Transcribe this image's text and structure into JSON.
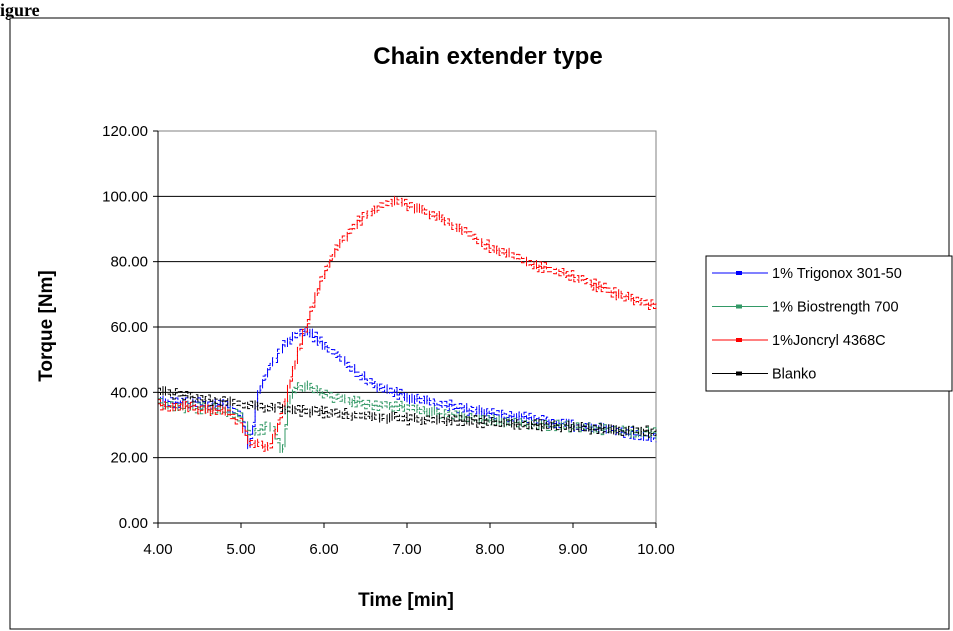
{
  "page": {
    "top_fragment": "igure"
  },
  "chart_data": {
    "type": "line",
    "title": "Chain extender type",
    "xlabel": "Time [min]",
    "ylabel": "Torque [Nm]",
    "xlim": [
      4.0,
      10.0
    ],
    "ylim": [
      0.0,
      120.0
    ],
    "x_ticks": [
      "4.00",
      "5.00",
      "6.00",
      "7.00",
      "8.00",
      "9.00",
      "10.00"
    ],
    "y_ticks": [
      "0.00",
      "20.00",
      "40.00",
      "60.00",
      "80.00",
      "100.00",
      "120.00"
    ],
    "grid": "horizontal",
    "legend_position": "right",
    "series": [
      {
        "name": "1% Trigonox 301-50",
        "color": "#0000ff",
        "points": [
          [
            4.0,
            38
          ],
          [
            4.4,
            37.5
          ],
          [
            4.8,
            36.5
          ],
          [
            5.0,
            34
          ],
          [
            5.05,
            27
          ],
          [
            5.1,
            24
          ],
          [
            5.13,
            30
          ],
          [
            5.2,
            41
          ],
          [
            5.3,
            47
          ],
          [
            5.4,
            51
          ],
          [
            5.5,
            55
          ],
          [
            5.6,
            57
          ],
          [
            5.7,
            59
          ],
          [
            5.75,
            60
          ],
          [
            5.8,
            59
          ],
          [
            5.9,
            57
          ],
          [
            6.0,
            55
          ],
          [
            6.2,
            51
          ],
          [
            6.4,
            46
          ],
          [
            6.6,
            43
          ],
          [
            6.8,
            41
          ],
          [
            7.0,
            39
          ],
          [
            7.5,
            36.5
          ],
          [
            8.0,
            34
          ],
          [
            8.5,
            32.5
          ],
          [
            9.0,
            30.5
          ],
          [
            9.5,
            29
          ],
          [
            10.0,
            27
          ]
        ]
      },
      {
        "name": "1% Biostrength 700",
        "color": "#339966",
        "points": [
          [
            4.0,
            37
          ],
          [
            4.4,
            36
          ],
          [
            4.8,
            35
          ],
          [
            5.0,
            33
          ],
          [
            5.05,
            30
          ],
          [
            5.1,
            28
          ],
          [
            5.2,
            29
          ],
          [
            5.3,
            30
          ],
          [
            5.4,
            29
          ],
          [
            5.45,
            24
          ],
          [
            5.5,
            23
          ],
          [
            5.55,
            36
          ],
          [
            5.6,
            41
          ],
          [
            5.7,
            43
          ],
          [
            5.8,
            42
          ],
          [
            6.0,
            40
          ],
          [
            6.3,
            38
          ],
          [
            6.6,
            37
          ],
          [
            7.0,
            36
          ],
          [
            7.5,
            34
          ],
          [
            8.0,
            32
          ],
          [
            8.5,
            31
          ],
          [
            9.0,
            30
          ],
          [
            9.5,
            29
          ],
          [
            10.0,
            28
          ]
        ]
      },
      {
        "name": "1%Joncryl 4368C",
        "color": "#ff0000",
        "points": [
          [
            4.0,
            37
          ],
          [
            4.4,
            36
          ],
          [
            4.8,
            34.5
          ],
          [
            5.0,
            31
          ],
          [
            5.05,
            27
          ],
          [
            5.1,
            25
          ],
          [
            5.2,
            25
          ],
          [
            5.3,
            24
          ],
          [
            5.35,
            24
          ],
          [
            5.4,
            28
          ],
          [
            5.5,
            36
          ],
          [
            5.6,
            46
          ],
          [
            5.7,
            55
          ],
          [
            5.8,
            63
          ],
          [
            5.9,
            71
          ],
          [
            6.0,
            78
          ],
          [
            6.1,
            83
          ],
          [
            6.2,
            87
          ],
          [
            6.3,
            90
          ],
          [
            6.4,
            93
          ],
          [
            6.5,
            95
          ],
          [
            6.6,
            97
          ],
          [
            6.7,
            98
          ],
          [
            6.8,
            99
          ],
          [
            6.9,
            99
          ],
          [
            7.0,
            98
          ],
          [
            7.2,
            96
          ],
          [
            7.4,
            94
          ],
          [
            7.6,
            91
          ],
          [
            7.8,
            88
          ],
          [
            8.0,
            85
          ],
          [
            8.3,
            82
          ],
          [
            8.6,
            79
          ],
          [
            9.0,
            76
          ],
          [
            9.3,
            73
          ],
          [
            9.6,
            70
          ],
          [
            10.0,
            67
          ]
        ]
      },
      {
        "name": "Blanko",
        "color": "#000000",
        "points": [
          [
            4.0,
            41
          ],
          [
            4.3,
            40
          ],
          [
            4.6,
            38.5
          ],
          [
            5.0,
            37
          ],
          [
            5.5,
            35.5
          ],
          [
            6.0,
            34.5
          ],
          [
            6.5,
            33.5
          ],
          [
            7.0,
            32.5
          ],
          [
            7.5,
            32
          ],
          [
            8.0,
            31.5
          ],
          [
            8.5,
            30.5
          ],
          [
            9.0,
            30
          ],
          [
            9.5,
            29
          ],
          [
            10.0,
            28.5
          ]
        ]
      }
    ]
  }
}
